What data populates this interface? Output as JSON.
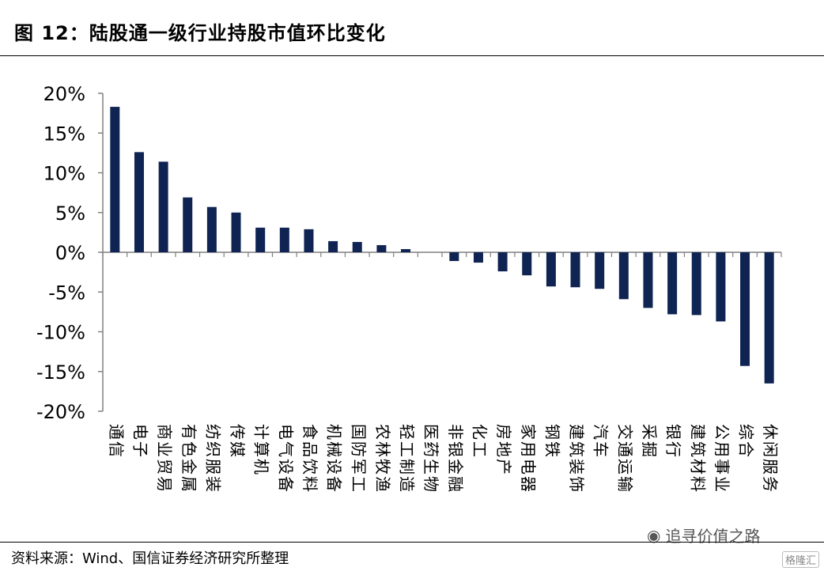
{
  "header": {
    "title": "图 12：陆股通一级行业持股市值环比变化"
  },
  "footer": {
    "source": "资料来源：Wind、国信证券经济研究所整理"
  },
  "watermark": {
    "text": "追寻价值之路",
    "badge": "格隆汇"
  },
  "colors": {
    "bar": "#0f2452",
    "axis": "#808080"
  },
  "chart_data": {
    "type": "bar",
    "title": "",
    "ylim": [
      -20,
      20
    ],
    "yticks": [
      "20%",
      "15%",
      "10%",
      "5%",
      "0%",
      "-5%",
      "-10%",
      "-15%",
      "-20%"
    ],
    "categories": [
      "通信",
      "电子",
      "商业贸易",
      "有色金属",
      "纺织服装",
      "传媒",
      "计算机",
      "电气设备",
      "食品饮料",
      "机械设备",
      "国防军工",
      "农林牧渔",
      "轻工制造",
      "医药生物",
      "非银金融",
      "化工",
      "房地产",
      "家用电器",
      "钢铁",
      "建筑装饰",
      "汽车",
      "交通运输",
      "采掘",
      "银行",
      "建筑材料",
      "公用事业",
      "综合",
      "休闲服务"
    ],
    "values": [
      18.3,
      12.6,
      11.4,
      6.9,
      5.7,
      5.0,
      3.1,
      3.1,
      2.9,
      1.4,
      1.3,
      0.9,
      0.4,
      0.0,
      -1.1,
      -1.3,
      -2.4,
      -2.9,
      -4.3,
      -4.4,
      -4.6,
      -5.9,
      -7.0,
      -7.8,
      -7.9,
      -8.7,
      -14.3,
      -16.5
    ]
  }
}
